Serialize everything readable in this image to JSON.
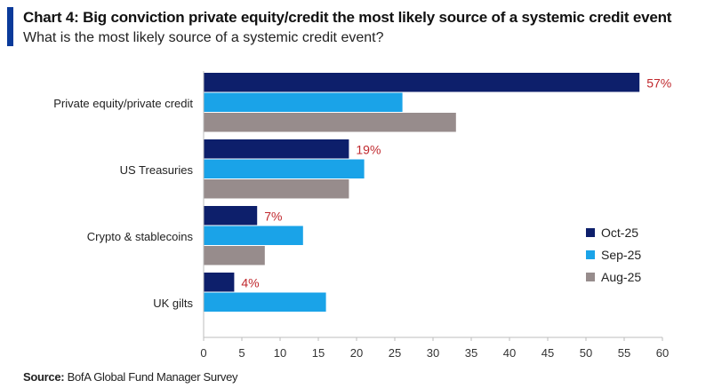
{
  "chart_data": {
    "type": "bar",
    "orientation": "horizontal",
    "title": "Chart 4: Big conviction private equity/credit the most likely source of a systemic credit event",
    "subtitle": "What is the most likely source of a systemic credit event?",
    "categories": [
      "Private equity/private credit",
      "US Treasuries",
      "Crypto & stablecoins",
      "UK gilts"
    ],
    "series": [
      {
        "name": "Oct-25",
        "color": "#0d1f6b",
        "values": [
          57,
          19,
          7,
          4
        ]
      },
      {
        "name": "Sep-25",
        "color": "#1aa3e8",
        "values": [
          26,
          21,
          13,
          16
        ]
      },
      {
        "name": "Aug-25",
        "color": "#978c8c",
        "values": [
          33,
          19,
          8,
          null
        ]
      }
    ],
    "data_labels": [
      "57%",
      "19%",
      "7%",
      "4%"
    ],
    "xlim": [
      0,
      60
    ],
    "xticks": [
      0,
      5,
      10,
      15,
      20,
      25,
      30,
      35,
      40,
      45,
      50,
      55,
      60
    ],
    "legend": "right",
    "xlabel": "",
    "ylabel": ""
  },
  "source": {
    "label": "Source:",
    "text": "BofA Global Fund Manager Survey"
  }
}
